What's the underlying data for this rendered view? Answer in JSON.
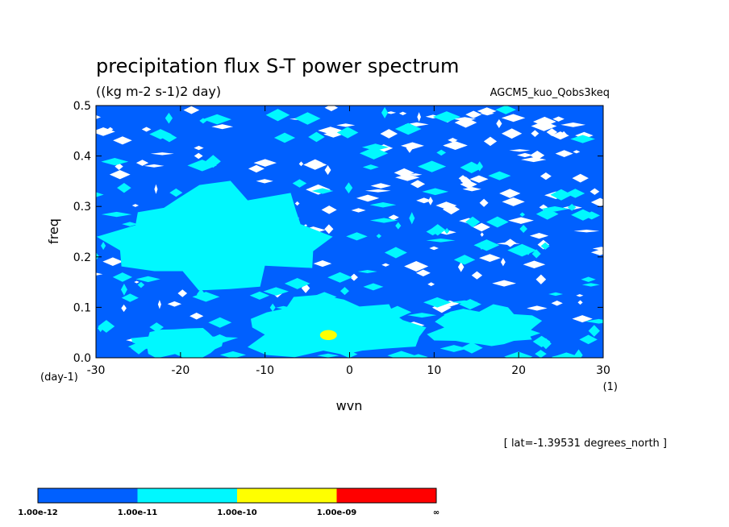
{
  "chart_data": {
    "type": "heatmap",
    "title": "precipitation flux S-T power spectrum",
    "units": "((kg m-2 s-1)2 day)",
    "experiment": "AGCM5_kuo_Qobs3keq",
    "xlabel": "wvn",
    "xunit": "(1)",
    "ylabel": "freq",
    "yunit": "(day-1)",
    "xlim": [
      -30,
      30
    ],
    "ylim": [
      0.0,
      0.5
    ],
    "x_ticks": [
      -30,
      -20,
      -10,
      0,
      10,
      20,
      30
    ],
    "y_ticks": [
      0.0,
      0.1,
      0.2,
      0.3,
      0.4,
      0.5
    ],
    "x_tick_labels": [
      "-30",
      "-20",
      "-10",
      "0",
      "10",
      "20",
      "30"
    ],
    "y_tick_labels": [
      "0.0",
      "0.1",
      "0.2",
      "0.3",
      "0.4",
      "0.5"
    ],
    "annotation": "[ lat=-1.39531 degrees_north ]",
    "levels": [
      {
        "label": "1.00e-12",
        "color": "#0060ff"
      },
      {
        "label": "1.00e-11",
        "color": "#00f8ff"
      },
      {
        "label": "1.00e-10",
        "color": "#ffff00"
      },
      {
        "label": "1.00e-09",
        "color": "#ff0000"
      }
    ],
    "colorbar_end_label": "∞",
    "background_color": "#ffffff",
    "regions": [
      {
        "x": [
          -26,
          -14
        ],
        "y": [
          0.0,
          0.06
        ],
        "level": 1
      },
      {
        "x": [
          -12,
          8
        ],
        "y": [
          0.0,
          0.12
        ],
        "level": 1
      },
      {
        "x": [
          -28,
          -4
        ],
        "y": [
          0.14,
          0.34
        ],
        "level": 1
      },
      {
        "x": [
          10,
          22
        ],
        "y": [
          0.02,
          0.1
        ],
        "level": 1
      },
      {
        "x": [
          -3.5,
          -1.5
        ],
        "y": [
          0.035,
          0.055
        ],
        "level": 2
      }
    ]
  }
}
